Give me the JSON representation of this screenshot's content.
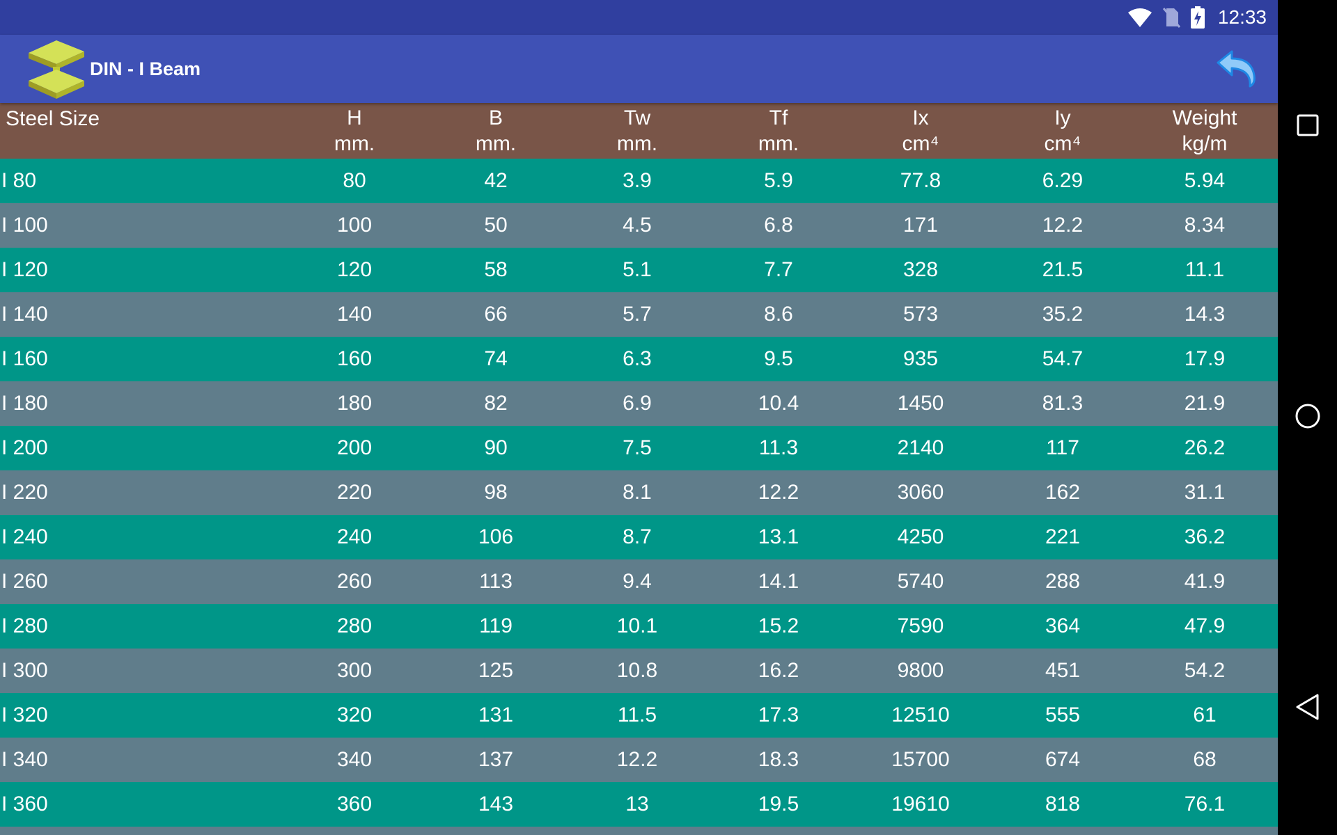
{
  "status_bar": {
    "time": "12:33",
    "icons": [
      "wifi-icon",
      "no-sim-icon",
      "battery-charging-icon"
    ]
  },
  "app_bar": {
    "title": "DIN - I Beam",
    "logo_icon": "i-beam-logo-icon",
    "back_icon": "back-arrow-icon"
  },
  "table": {
    "headers": [
      {
        "label": "Steel Size",
        "unit": ""
      },
      {
        "label": "H",
        "unit": "mm."
      },
      {
        "label": "B",
        "unit": "mm."
      },
      {
        "label": "Tw",
        "unit": "mm."
      },
      {
        "label": "Tf",
        "unit": "mm."
      },
      {
        "label": "Ix",
        "unit": "cm⁴"
      },
      {
        "label": "Iy",
        "unit": "cm⁴"
      },
      {
        "label": "Weight",
        "unit": "kg/m"
      }
    ],
    "rows": [
      [
        "I 80",
        "80",
        "42",
        "3.9",
        "5.9",
        "77.8",
        "6.29",
        "5.94"
      ],
      [
        "I 100",
        "100",
        "50",
        "4.5",
        "6.8",
        "171",
        "12.2",
        "8.34"
      ],
      [
        "I 120",
        "120",
        "58",
        "5.1",
        "7.7",
        "328",
        "21.5",
        "11.1"
      ],
      [
        "I 140",
        "140",
        "66",
        "5.7",
        "8.6",
        "573",
        "35.2",
        "14.3"
      ],
      [
        "I 160",
        "160",
        "74",
        "6.3",
        "9.5",
        "935",
        "54.7",
        "17.9"
      ],
      [
        "I 180",
        "180",
        "82",
        "6.9",
        "10.4",
        "1450",
        "81.3",
        "21.9"
      ],
      [
        "I 200",
        "200",
        "90",
        "7.5",
        "11.3",
        "2140",
        "117",
        "26.2"
      ],
      [
        "I 220",
        "220",
        "98",
        "8.1",
        "12.2",
        "3060",
        "162",
        "31.1"
      ],
      [
        "I 240",
        "240",
        "106",
        "8.7",
        "13.1",
        "4250",
        "221",
        "36.2"
      ],
      [
        "I 260",
        "260",
        "113",
        "9.4",
        "14.1",
        "5740",
        "288",
        "41.9"
      ],
      [
        "I 280",
        "280",
        "119",
        "10.1",
        "15.2",
        "7590",
        "364",
        "47.9"
      ],
      [
        "I 300",
        "300",
        "125",
        "10.8",
        "16.2",
        "9800",
        "451",
        "54.2"
      ],
      [
        "I 320",
        "320",
        "131",
        "11.5",
        "17.3",
        "12510",
        "555",
        "61"
      ],
      [
        "I 340",
        "340",
        "137",
        "12.2",
        "18.3",
        "15700",
        "674",
        "68"
      ],
      [
        "I 360",
        "360",
        "143",
        "13",
        "19.5",
        "19610",
        "818",
        "76.1"
      ]
    ]
  },
  "nav_bar": {
    "buttons": [
      "recents-icon",
      "home-icon",
      "back-icon"
    ]
  },
  "colors": {
    "status_bar": "#303f9f",
    "app_bar": "#3f51b5",
    "header": "#795548",
    "row_even": "#009688",
    "row_odd": "#607d8b"
  }
}
